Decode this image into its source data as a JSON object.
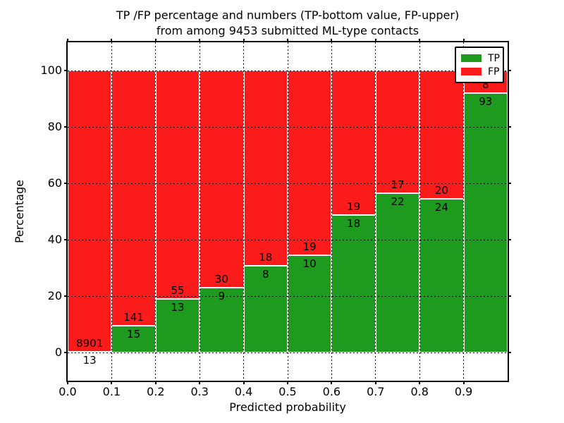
{
  "figure": {
    "title_line1": "TP /FP percentage and numbers (TP-bottom value, FP-upper)",
    "title_line2": "from among 9453 submitted ML-type contacts"
  },
  "chart_data": {
    "type": "bar",
    "subtype": "stacked-percentage",
    "title": "TP /FP percentage and numbers (TP-bottom value, FP-upper) from among 9453 submitted ML-type contacts",
    "xlabel": "Predicted probability",
    "ylabel": "Percentage",
    "xlim": [
      0.0,
      1.0
    ],
    "ylim": [
      -10,
      110
    ],
    "xtick_labels": [
      "0.0",
      "0.1",
      "0.2",
      "0.3",
      "0.4",
      "0.5",
      "0.6",
      "0.7",
      "0.8",
      "0.9"
    ],
    "ytick_values": [
      0,
      20,
      40,
      60,
      80,
      100
    ],
    "grid": "dotted",
    "total_contacts": 9453,
    "legend": {
      "position": "upper-right",
      "entries": [
        {
          "label": "TP",
          "color": "#1e9b1e"
        },
        {
          "label": "FP",
          "color": "#fb1b1b"
        }
      ]
    },
    "bins": [
      {
        "x_start": 0.0,
        "x_end": 0.1,
        "tp": 13,
        "fp": 8901,
        "tp_pct": 0.15,
        "fp_pct": 99.85
      },
      {
        "x_start": 0.1,
        "x_end": 0.2,
        "tp": 15,
        "fp": 141,
        "tp_pct": 9.62,
        "fp_pct": 90.38
      },
      {
        "x_start": 0.2,
        "x_end": 0.3,
        "tp": 13,
        "fp": 55,
        "tp_pct": 19.12,
        "fp_pct": 80.88
      },
      {
        "x_start": 0.3,
        "x_end": 0.4,
        "tp": 9,
        "fp": 30,
        "tp_pct": 23.08,
        "fp_pct": 76.92
      },
      {
        "x_start": 0.4,
        "x_end": 0.5,
        "tp": 8,
        "fp": 18,
        "tp_pct": 30.77,
        "fp_pct": 69.23
      },
      {
        "x_start": 0.5,
        "x_end": 0.6,
        "tp": 10,
        "fp": 19,
        "tp_pct": 34.48,
        "fp_pct": 65.52
      },
      {
        "x_start": 0.6,
        "x_end": 0.7,
        "tp": 18,
        "fp": 19,
        "tp_pct": 48.65,
        "fp_pct": 51.35
      },
      {
        "x_start": 0.7,
        "x_end": 0.8,
        "tp": 22,
        "fp": 17,
        "tp_pct": 56.41,
        "fp_pct": 43.59
      },
      {
        "x_start": 0.8,
        "x_end": 0.9,
        "tp": 24,
        "fp": 20,
        "tp_pct": 54.55,
        "fp_pct": 45.45
      },
      {
        "x_start": 0.9,
        "x_end": 1.0,
        "tp": 93,
        "fp": 8,
        "tp_pct": 92.08,
        "fp_pct": 7.92
      }
    ]
  }
}
